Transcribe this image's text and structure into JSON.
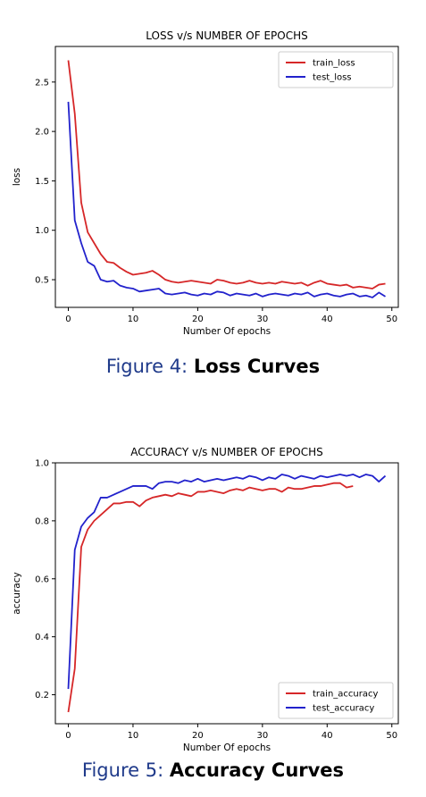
{
  "chart_data": [
    {
      "type": "line",
      "title": "LOSS v/s NUMBER OF EPOCHS",
      "xlabel": "Number Of epochs",
      "ylabel": "loss",
      "xlim": [
        -2,
        51
      ],
      "ylim": [
        0.22,
        2.86
      ],
      "xticks": [
        0,
        10,
        20,
        30,
        40,
        50
      ],
      "yticks": [
        0.5,
        1.0,
        1.5,
        2.0,
        2.5
      ],
      "ytick_labels": [
        "0.5",
        "1.0",
        "1.5",
        "2.0",
        "2.5"
      ],
      "legend": "top-right",
      "grid": false,
      "series": [
        {
          "name": "train_loss",
          "color": "#d62728",
          "x": [
            0,
            1,
            2,
            3,
            4,
            5,
            6,
            7,
            8,
            9,
            10,
            11,
            12,
            13,
            14,
            15,
            16,
            17,
            18,
            19,
            20,
            21,
            22,
            23,
            24,
            25,
            26,
            27,
            28,
            29,
            30,
            31,
            32,
            33,
            34,
            35,
            36,
            37,
            38,
            39,
            40,
            41,
            42,
            43,
            44,
            45,
            46,
            47,
            48,
            49
          ],
          "values": [
            2.72,
            2.18,
            1.28,
            0.98,
            0.87,
            0.76,
            0.68,
            0.67,
            0.62,
            0.58,
            0.55,
            0.56,
            0.57,
            0.59,
            0.55,
            0.5,
            0.48,
            0.47,
            0.48,
            0.49,
            0.48,
            0.47,
            0.46,
            0.5,
            0.49,
            0.47,
            0.46,
            0.47,
            0.49,
            0.47,
            0.46,
            0.47,
            0.46,
            0.48,
            0.47,
            0.46,
            0.47,
            0.44,
            0.47,
            0.49,
            0.46,
            0.45,
            0.44,
            0.45,
            0.42,
            0.43,
            0.42,
            0.41,
            0.45,
            0.46
          ]
        },
        {
          "name": "test_loss",
          "color": "#2222cc",
          "x": [
            0,
            1,
            2,
            3,
            4,
            5,
            6,
            7,
            8,
            9,
            10,
            11,
            12,
            13,
            14,
            15,
            16,
            17,
            18,
            19,
            20,
            21,
            22,
            23,
            24,
            25,
            26,
            27,
            28,
            29,
            30,
            31,
            32,
            33,
            34,
            35,
            36,
            37,
            38,
            39,
            40,
            41,
            42,
            43,
            44,
            45,
            46,
            47,
            48,
            49
          ],
          "values": [
            2.3,
            1.1,
            0.87,
            0.68,
            0.64,
            0.5,
            0.48,
            0.49,
            0.44,
            0.42,
            0.41,
            0.38,
            0.39,
            0.4,
            0.41,
            0.36,
            0.35,
            0.36,
            0.37,
            0.35,
            0.34,
            0.36,
            0.35,
            0.38,
            0.37,
            0.34,
            0.36,
            0.35,
            0.34,
            0.36,
            0.33,
            0.35,
            0.36,
            0.35,
            0.34,
            0.36,
            0.35,
            0.37,
            0.33,
            0.35,
            0.36,
            0.34,
            0.33,
            0.35,
            0.36,
            0.33,
            0.34,
            0.32,
            0.37,
            0.33
          ]
        }
      ]
    },
    {
      "type": "line",
      "title": "ACCURACY v/s NUMBER OF EPOCHS",
      "xlabel": "Number Of epochs",
      "ylabel": "accuracy",
      "xlim": [
        -2,
        51
      ],
      "ylim": [
        0.1,
        1.0
      ],
      "xticks": [
        0,
        10,
        20,
        30,
        40,
        50
      ],
      "yticks": [
        0.2,
        0.4,
        0.6,
        0.8,
        1.0
      ],
      "ytick_labels": [
        "0.2",
        "0.4",
        "0.6",
        "0.8",
        "1.0"
      ],
      "legend": "bottom-right",
      "grid": false,
      "series": [
        {
          "name": "train_accuracy",
          "color": "#d62728",
          "x": [
            0,
            1,
            2,
            3,
            4,
            5,
            6,
            7,
            8,
            9,
            10,
            11,
            12,
            13,
            14,
            15,
            16,
            17,
            18,
            19,
            20,
            21,
            22,
            23,
            24,
            25,
            26,
            27,
            28,
            29,
            30,
            31,
            32,
            33,
            34,
            35,
            36,
            37,
            38,
            39,
            40,
            41,
            42,
            43,
            44
          ],
          "values": [
            0.14,
            0.29,
            0.71,
            0.77,
            0.8,
            0.82,
            0.84,
            0.86,
            0.86,
            0.865,
            0.865,
            0.85,
            0.87,
            0.88,
            0.885,
            0.89,
            0.885,
            0.895,
            0.89,
            0.885,
            0.9,
            0.9,
            0.905,
            0.9,
            0.895,
            0.905,
            0.91,
            0.905,
            0.915,
            0.91,
            0.905,
            0.91,
            0.91,
            0.9,
            0.915,
            0.91,
            0.91,
            0.915,
            0.92,
            0.92,
            0.925,
            0.93,
            0.93,
            0.915,
            0.92
          ]
        },
        {
          "name": "test_accuracy",
          "color": "#2222cc",
          "x": [
            0,
            1,
            2,
            3,
            4,
            5,
            6,
            7,
            8,
            9,
            10,
            11,
            12,
            13,
            14,
            15,
            16,
            17,
            18,
            19,
            20,
            21,
            22,
            23,
            24,
            25,
            26,
            27,
            28,
            29,
            30,
            31,
            32,
            33,
            34,
            35,
            36,
            37,
            38,
            39,
            40,
            41,
            42,
            43,
            44,
            45,
            46,
            47,
            48,
            49
          ],
          "values": [
            0.22,
            0.7,
            0.78,
            0.81,
            0.83,
            0.88,
            0.88,
            0.89,
            0.9,
            0.91,
            0.92,
            0.92,
            0.92,
            0.91,
            0.93,
            0.935,
            0.935,
            0.93,
            0.94,
            0.935,
            0.945,
            0.935,
            0.94,
            0.945,
            0.94,
            0.945,
            0.95,
            0.945,
            0.955,
            0.95,
            0.94,
            0.95,
            0.945,
            0.96,
            0.955,
            0.945,
            0.955,
            0.95,
            0.945,
            0.955,
            0.95,
            0.955,
            0.96,
            0.955,
            0.96,
            0.95,
            0.96,
            0.955,
            0.935,
            0.955
          ]
        }
      ]
    }
  ],
  "captions": {
    "loss": {
      "prefix": "Figure 4: ",
      "bold": "Loss Curves"
    },
    "acc": {
      "prefix": "Figure 5: ",
      "bold": "Accuracy Curves"
    }
  }
}
